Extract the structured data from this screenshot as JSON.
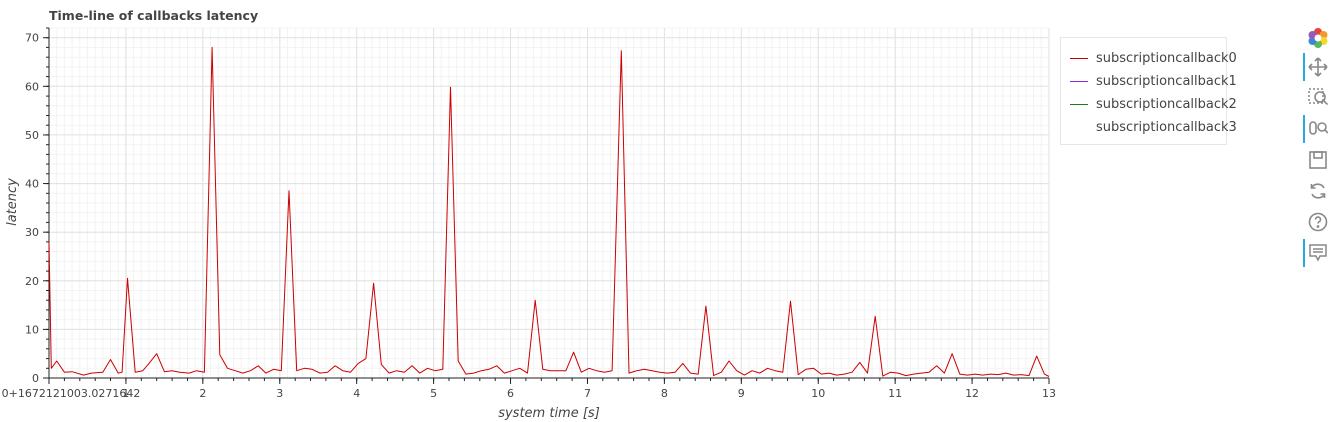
{
  "chart_data": {
    "type": "line",
    "title": "Time-line of callbacks latency",
    "xlabel": "system time [s]",
    "ylabel": "latency",
    "xlim": [
      0,
      13
    ],
    "ylim": [
      0,
      72
    ],
    "x_ticks": [
      0,
      1,
      2,
      3,
      4,
      5,
      6,
      7,
      8,
      9,
      10,
      11,
      12,
      13
    ],
    "x_tick_labels": [
      "0+1672121003.0271642",
      "1",
      "2",
      "3",
      "4",
      "5",
      "6",
      "7",
      "8",
      "9",
      "10",
      "11",
      "12",
      "13"
    ],
    "y_ticks": [
      0,
      10,
      20,
      30,
      40,
      50,
      60,
      70
    ],
    "grid": true,
    "legend_position": "outside-right",
    "legend": [
      "subscriptioncallback0",
      "subscriptioncallback1",
      "subscriptioncallback2",
      "subscriptioncallback3"
    ],
    "series": [
      {
        "name": "subscriptioncallback0",
        "color": "#cc0000",
        "x": [
          0.0,
          0.03,
          0.1,
          0.2,
          0.3,
          0.45,
          0.55,
          0.7,
          0.8,
          0.9,
          0.95,
          1.02,
          1.12,
          1.22,
          1.3,
          1.4,
          1.5,
          1.6,
          1.7,
          1.82,
          1.92,
          2.02,
          2.12,
          2.22,
          2.32,
          2.42,
          2.52,
          2.62,
          2.72,
          2.82,
          2.92,
          3.02,
          3.12,
          3.22,
          3.32,
          3.42,
          3.52,
          3.62,
          3.72,
          3.82,
          3.92,
          4.02,
          4.12,
          4.22,
          4.32,
          4.42,
          4.52,
          4.62,
          4.72,
          4.82,
          4.92,
          5.02,
          5.12,
          5.22,
          5.32,
          5.42,
          5.52,
          5.62,
          5.72,
          5.82,
          5.92,
          6.02,
          6.12,
          6.22,
          6.32,
          6.42,
          6.52,
          6.62,
          6.72,
          6.82,
          6.92,
          7.02,
          7.12,
          7.22,
          7.32,
          7.44,
          7.54,
          7.64,
          7.74,
          7.84,
          7.94,
          8.04,
          8.14,
          8.24,
          8.34,
          8.44,
          8.54,
          8.64,
          8.74,
          8.84,
          8.94,
          9.04,
          9.14,
          9.24,
          9.34,
          9.44,
          9.54,
          9.64,
          9.74,
          9.84,
          9.94,
          10.04,
          10.14,
          10.24,
          10.34,
          10.44,
          10.54,
          10.64,
          10.74,
          10.84,
          10.94,
          11.04,
          11.14,
          11.24,
          11.34,
          11.44,
          11.54,
          11.64,
          11.74,
          11.84,
          11.94,
          12.04,
          12.14,
          12.24,
          12.34,
          12.44,
          12.54,
          12.64,
          12.74,
          12.84,
          12.94,
          13.0
        ],
        "y": [
          28.0,
          2.0,
          3.5,
          1.2,
          1.3,
          0.6,
          1.0,
          1.2,
          3.8,
          1.0,
          1.2,
          20.5,
          1.2,
          1.5,
          3.0,
          5.0,
          1.3,
          1.5,
          1.2,
          1.0,
          1.5,
          1.2,
          68.0,
          4.8,
          2.0,
          1.5,
          1.0,
          1.5,
          2.5,
          1.0,
          1.8,
          1.5,
          38.5,
          1.5,
          2.0,
          1.8,
          1.0,
          1.2,
          2.5,
          1.5,
          1.2,
          3.0,
          4.0,
          19.5,
          2.8,
          1.0,
          1.5,
          1.2,
          2.5,
          1.0,
          2.0,
          1.5,
          1.8,
          59.8,
          3.5,
          0.8,
          1.0,
          1.5,
          1.8,
          2.5,
          1.0,
          1.5,
          2.0,
          1.0,
          16.0,
          1.8,
          1.5,
          1.5,
          1.5,
          5.3,
          1.2,
          2.0,
          1.5,
          1.2,
          1.5,
          67.3,
          1.0,
          1.5,
          1.8,
          1.5,
          1.2,
          1.0,
          1.2,
          3.0,
          1.0,
          0.8,
          14.8,
          0.5,
          1.2,
          3.5,
          1.5,
          0.6,
          1.5,
          1.0,
          2.0,
          1.5,
          1.2,
          15.8,
          0.7,
          1.8,
          2.0,
          0.8,
          1.0,
          0.6,
          0.8,
          1.2,
          3.2,
          1.0,
          12.7,
          0.4,
          1.2,
          1.0,
          0.5,
          0.8,
          1.0,
          1.2,
          2.5,
          1.0,
          5.0,
          0.8,
          0.6,
          0.8,
          0.6,
          0.8,
          0.7,
          1.0,
          0.6,
          0.7,
          0.5,
          4.5,
          0.8,
          0.3
        ]
      },
      {
        "name": "subscriptioncallback1",
        "color": "#8a2be2",
        "x": [],
        "y": []
      },
      {
        "name": "subscriptioncallback2",
        "color": "#1b7a1b",
        "x": [],
        "y": []
      },
      {
        "name": "subscriptioncallback3",
        "color": "#ffffff",
        "x": [],
        "y": []
      }
    ]
  },
  "toolbar": {
    "tools": [
      "bokeh-logo-icon",
      "pan-icon",
      "box-zoom-icon",
      "wheel-zoom-icon",
      "save-icon",
      "reset-icon",
      "help-icon",
      "hover-icon"
    ]
  }
}
